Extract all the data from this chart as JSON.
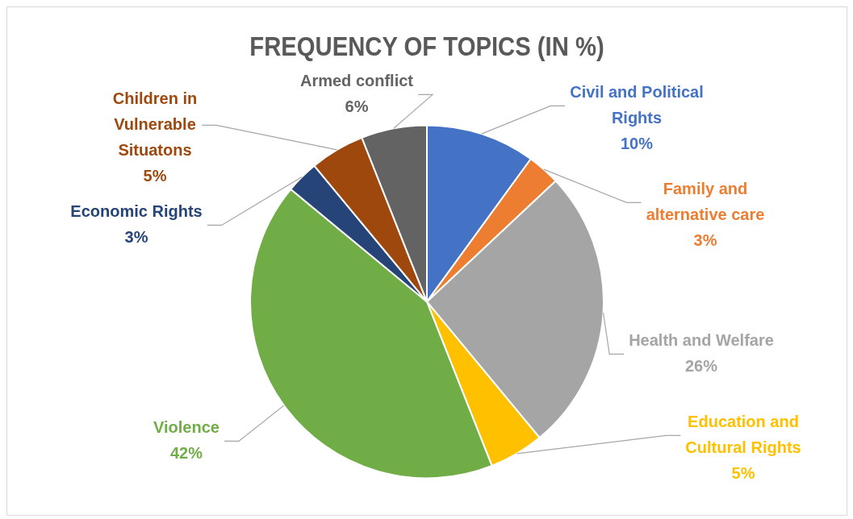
{
  "chart_data": {
    "type": "pie",
    "title": "FREQUENCY OF TOPICS (IN %)",
    "categories": [
      "Civil and Political Rights",
      "Family and alternative care",
      "Health and Welfare",
      "Education and Cultural Rights",
      "Violence",
      "Economic Rights",
      "Children in Vulnerable Situatons",
      "Armed conflict"
    ],
    "values": [
      10,
      3,
      26,
      5,
      42,
      3,
      5,
      6
    ],
    "value_labels": [
      "10%",
      "3%",
      "26%",
      "5%",
      "42%",
      "3%",
      "5%",
      "6%"
    ],
    "colors": [
      "#4472c4",
      "#ed7d31",
      "#a5a5a5",
      "#ffc000",
      "#70ad47",
      "#264478",
      "#9e480e",
      "#636363"
    ],
    "legend": false
  }
}
